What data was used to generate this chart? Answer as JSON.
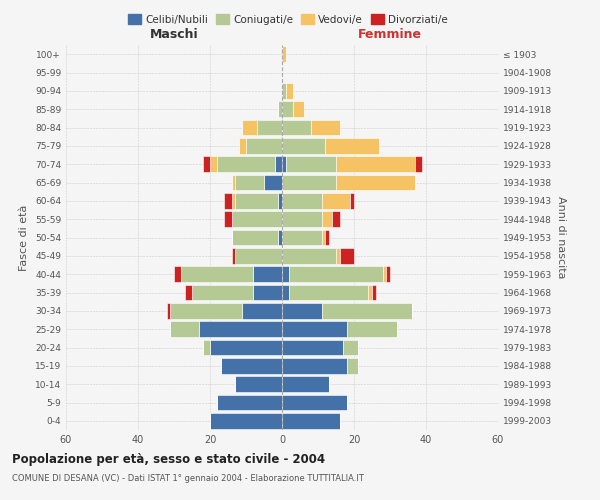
{
  "age_groups": [
    "0-4",
    "5-9",
    "10-14",
    "15-19",
    "20-24",
    "25-29",
    "30-34",
    "35-39",
    "40-44",
    "45-49",
    "50-54",
    "55-59",
    "60-64",
    "65-69",
    "70-74",
    "75-79",
    "80-84",
    "85-89",
    "90-94",
    "95-99",
    "100+"
  ],
  "birth_years": [
    "1999-2003",
    "1994-1998",
    "1989-1993",
    "1984-1988",
    "1979-1983",
    "1974-1978",
    "1969-1973",
    "1964-1968",
    "1959-1963",
    "1954-1958",
    "1949-1953",
    "1944-1948",
    "1939-1943",
    "1934-1938",
    "1929-1933",
    "1924-1928",
    "1919-1923",
    "1914-1918",
    "1909-1913",
    "1904-1908",
    "≤ 1903"
  ],
  "maschi": {
    "celibi": [
      20,
      18,
      13,
      17,
      20,
      23,
      11,
      8,
      8,
      0,
      1,
      0,
      1,
      5,
      2,
      0,
      0,
      0,
      0,
      0,
      0
    ],
    "coniugati": [
      0,
      0,
      0,
      0,
      2,
      8,
      20,
      17,
      20,
      13,
      13,
      14,
      12,
      8,
      16,
      10,
      7,
      1,
      0,
      0,
      0
    ],
    "vedovi": [
      0,
      0,
      0,
      0,
      0,
      0,
      0,
      0,
      0,
      0,
      0,
      0,
      1,
      1,
      2,
      2,
      4,
      0,
      0,
      0,
      0
    ],
    "divorziati": [
      0,
      0,
      0,
      0,
      0,
      0,
      1,
      2,
      2,
      1,
      0,
      2,
      2,
      0,
      2,
      0,
      0,
      0,
      0,
      0,
      0
    ]
  },
  "femmine": {
    "nubili": [
      16,
      18,
      13,
      18,
      17,
      18,
      11,
      2,
      2,
      0,
      0,
      0,
      0,
      0,
      1,
      0,
      0,
      0,
      0,
      0,
      0
    ],
    "coniugate": [
      0,
      0,
      0,
      3,
      4,
      14,
      25,
      22,
      26,
      15,
      11,
      11,
      11,
      15,
      14,
      12,
      8,
      3,
      1,
      0,
      0
    ],
    "vedove": [
      0,
      0,
      0,
      0,
      0,
      0,
      0,
      1,
      1,
      1,
      1,
      3,
      8,
      22,
      22,
      15,
      8,
      3,
      2,
      0,
      1
    ],
    "divorziate": [
      0,
      0,
      0,
      0,
      0,
      0,
      0,
      1,
      1,
      4,
      1,
      2,
      1,
      0,
      2,
      0,
      0,
      0,
      0,
      0,
      0
    ]
  },
  "colors": {
    "celibi": "#4472a8",
    "coniugati": "#b5c994",
    "vedovi": "#f5c264",
    "divorziati": "#cc2222"
  },
  "xlim": 60,
  "title_main": "Popolazione per età, sesso e stato civile - 2004",
  "title_sub": "COMUNE DI DESANA (VC) - Dati ISTAT 1° gennaio 2004 - Elaborazione TUTTITALIA.IT",
  "ylabel_left": "Fasce di età",
  "ylabel_right": "Anni di nascita",
  "xlabel_maschi": "Maschi",
  "xlabel_femmine": "Femmine",
  "legend_labels": [
    "Celibi/Nubili",
    "Coniugati/e",
    "Vedovi/e",
    "Divorziati/e"
  ],
  "bg_color": "#f5f5f5",
  "bar_height": 0.85
}
